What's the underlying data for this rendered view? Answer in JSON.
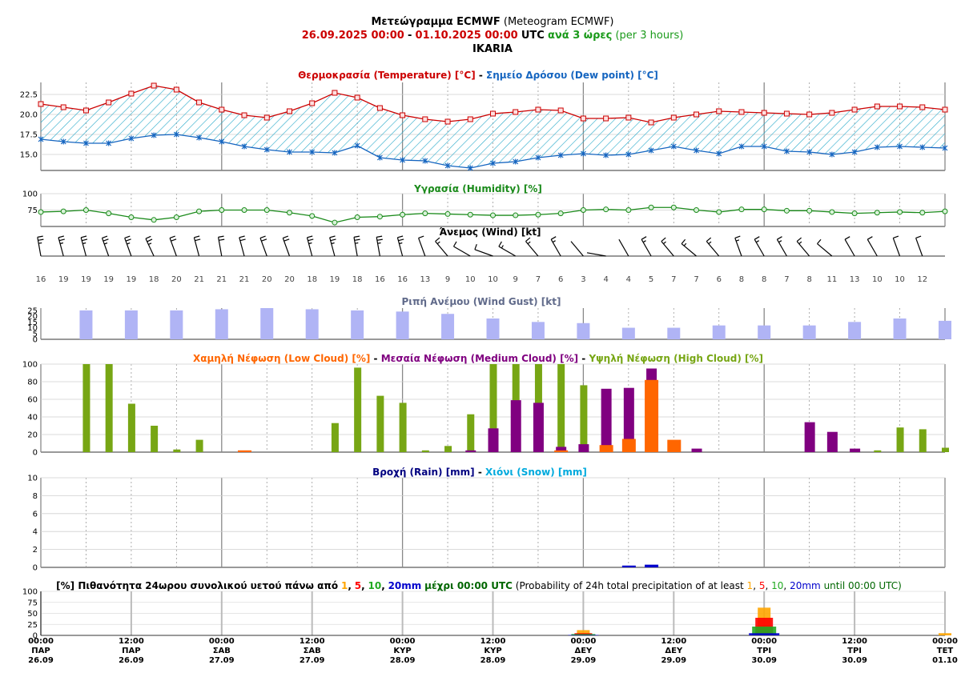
{
  "header": {
    "line1_bold": "Μετεώγραμμα ECMWF",
    "line1_normal": "(Meteogram ECMWF)",
    "line2_start": "26.09.2025 00:00",
    "line2_dash": "-",
    "line2_end": "01.10.2025 00:00",
    "line2_utc": "UTC",
    "line2_step": "ανά 3 ώρες",
    "line2_step_en": "(per 3 hours)",
    "location": "IKARIA"
  },
  "colors": {
    "temperature": "#cc0000",
    "dewpoint": "#1565c0",
    "humidity": "#1a8a1a",
    "gust": "#b0b4f5",
    "low_cloud": "#ff6600",
    "medium_cloud": "#800080",
    "high_cloud": "#77a614",
    "rain": "#0000cc",
    "snow": "#00aadd",
    "prob1": "#ffa500",
    "prob5": "#ff0000",
    "prob10": "#22aa22",
    "prob20": "#0000cc"
  },
  "chart_data": [
    {
      "type": "line",
      "name": "temperature_dewpoint",
      "title_part1": "Θερμοκρασία (Temperature) [°C]",
      "title_sep": "-",
      "title_part2": "Σημείο Δρόσου (Dew point) [°C]",
      "ylim": [
        13,
        24
      ],
      "yticks": [
        "15.0",
        "17.5",
        "20.0",
        "22.5"
      ],
      "series": [
        {
          "name": "Θερμοκρασία (Temperature) [°C]",
          "values": [
            21.3,
            20.9,
            20.5,
            21.5,
            22.6,
            23.6,
            23.1,
            21.5,
            20.6,
            19.9,
            19.6,
            20.4,
            21.4,
            22.7,
            22.1,
            20.8,
            19.9,
            19.4,
            19.1,
            19.4,
            20.1,
            20.3,
            20.6,
            20.5,
            19.5,
            19.5,
            19.6,
            19.0,
            19.6,
            20.0,
            20.4,
            20.3,
            20.2,
            20.1,
            20.0,
            20.2,
            20.6,
            21.0,
            21.0,
            20.9,
            20.6
          ]
        },
        {
          "name": "Σημείο Δρόσου (Dew point) [°C]",
          "values": [
            16.9,
            16.6,
            16.4,
            16.4,
            17.0,
            17.4,
            17.5,
            17.1,
            16.6,
            16.0,
            15.6,
            15.3,
            15.3,
            15.2,
            16.1,
            14.6,
            14.3,
            14.2,
            13.6,
            13.3,
            13.9,
            14.1,
            14.6,
            14.9,
            15.1,
            14.9,
            15.0,
            15.5,
            16.0,
            15.5,
            15.1,
            16.0,
            16.0,
            15.4,
            15.3,
            15.0,
            15.3,
            15.9,
            16.0,
            15.9,
            15.8
          ]
        }
      ]
    },
    {
      "type": "line",
      "name": "humidity",
      "title": "Υγρασία (Humidity) [%]",
      "ylim": [
        50,
        100
      ],
      "yticks": [
        "75",
        "100"
      ],
      "values": [
        72,
        73,
        75,
        70,
        64,
        60,
        64,
        73,
        75,
        75,
        75,
        71,
        66,
        56,
        64,
        65,
        68,
        70,
        69,
        68,
        67,
        67,
        68,
        70,
        75,
        76,
        75,
        79,
        79,
        75,
        72,
        76,
        76,
        74,
        74,
        72,
        70,
        71,
        72,
        71,
        73
      ]
    },
    {
      "type": "table",
      "name": "wind",
      "title": "Άνεμος (Wind) [kt]",
      "speeds": [
        "16",
        "19",
        "19",
        "19",
        "19",
        "18",
        "20",
        "21",
        "21",
        "21",
        "20",
        "20",
        "18",
        "19",
        "18",
        "16",
        "16",
        "13",
        "9",
        "10",
        "10",
        "9",
        "7",
        "6",
        "3",
        "4",
        "4",
        "5",
        "7",
        "7",
        "6",
        "8",
        "8",
        "7",
        "8",
        "11",
        "13",
        "10",
        "10",
        "12"
      ],
      "directions_deg": [
        350,
        345,
        345,
        340,
        340,
        335,
        340,
        345,
        350,
        345,
        340,
        340,
        345,
        345,
        350,
        350,
        345,
        340,
        320,
        300,
        290,
        300,
        320,
        330,
        320,
        280,
        330,
        330,
        320,
        310,
        320,
        340,
        330,
        330,
        320,
        310,
        330,
        330,
        340,
        340
      ]
    },
    {
      "type": "bar",
      "name": "wind_gust",
      "title": "Ριπή Ανέμου (Wind Gust) [kt]",
      "ylim": [
        0,
        27
      ],
      "yticks": [
        "0",
        "5",
        "10",
        "15",
        "20",
        "25"
      ],
      "values": [
        25,
        25,
        25,
        26,
        27,
        26,
        25,
        24,
        22,
        18,
        15,
        14,
        10,
        10,
        12,
        12,
        12,
        15,
        18,
        16
      ]
    },
    {
      "type": "bar",
      "name": "clouds",
      "title_low": "Χαμηλή Νέφωση (Low Cloud) [%]",
      "title_medium": "Μεσαία Νέφωση (Medium Cloud) [%]",
      "title_high": "Υψηλή Νέφωση (High Cloud) [%]",
      "title_sep": "-",
      "ylim": [
        0,
        100
      ],
      "yticks": [
        "0",
        "20",
        "40",
        "60",
        "80",
        "100"
      ],
      "series": [
        {
          "name": "Χαμηλή Νέφωση (Low Cloud) [%]",
          "values": [
            0,
            0,
            0,
            0,
            0,
            0,
            0,
            0,
            0,
            2,
            0,
            0,
            0,
            0,
            0,
            0,
            0,
            0,
            0,
            0,
            0,
            0,
            0,
            2,
            0,
            8,
            15,
            82,
            14,
            0,
            0,
            0,
            0,
            0,
            0,
            0,
            0,
            0,
            0,
            0,
            0
          ]
        },
        {
          "name": "Μεσαία Νέφωση (Medium Cloud) [%]",
          "values": [
            0,
            0,
            0,
            0,
            0,
            0,
            0,
            0,
            0,
            0,
            0,
            0,
            0,
            0,
            0,
            0,
            0,
            0,
            0,
            2,
            27,
            59,
            56,
            6,
            9,
            72,
            73,
            95,
            0,
            4,
            0,
            0,
            0,
            0,
            34,
            23,
            4,
            0,
            0,
            0,
            0
          ]
        },
        {
          "name": "Υψηλή Νέφωση (High Cloud) [%]",
          "values": [
            0,
            0,
            100,
            100,
            55,
            30,
            3,
            14,
            0,
            0,
            0,
            0,
            0,
            33,
            96,
            64,
            56,
            2,
            7,
            43,
            100,
            100,
            100,
            100,
            76,
            28,
            0,
            0,
            0,
            0,
            0,
            0,
            0,
            0,
            0,
            0,
            0,
            2,
            28,
            26,
            5
          ]
        }
      ]
    },
    {
      "type": "bar",
      "name": "precipitation",
      "title_rain": "Βροχή (Rain) [mm]",
      "title_sep": "-",
      "title_snow": "Χιόνι (Snow) [mm]",
      "ylim": [
        0,
        10
      ],
      "yticks": [
        "0",
        "2",
        "4",
        "6",
        "8",
        "10"
      ],
      "rain_values": [
        0,
        0,
        0,
        0,
        0,
        0,
        0,
        0,
        0,
        0,
        0,
        0,
        0,
        0,
        0,
        0,
        0,
        0,
        0,
        0,
        0,
        0,
        0,
        0,
        0,
        0,
        0.2,
        0.3,
        0,
        0,
        0,
        0,
        0,
        0,
        0,
        0,
        0,
        0,
        0,
        0,
        0
      ]
    },
    {
      "type": "bar",
      "name": "probability",
      "title_a": "[%] Πιθανότητα 24ωρου συνολικού υετού πάνω από",
      "title_b": "μέχρι 00:00 UTC",
      "title_c": "(Probability of 24h total precipitation of at least",
      "title_d": "until 00:00 UTC)",
      "thresholds": [
        "1",
        "5",
        "10",
        "20mm"
      ],
      "comma": ",",
      "yticks": [
        "0",
        "25",
        "50",
        "75",
        "100"
      ],
      "ylim": [
        0,
        100
      ],
      "days": [
        {
          "label": "ΔΕΥ 29.09",
          "p1": 12,
          "p5": 5,
          "p10": 3,
          "p20": 1
        },
        {
          "label": "ΤΡΙ 30.09",
          "p1": 63,
          "p5": 40,
          "p10": 20,
          "p20": 5
        },
        {
          "label": "ΤΕΤ 01.10",
          "p1": 5,
          "p5": 0,
          "p10": 0,
          "p20": 0
        }
      ]
    }
  ],
  "xaxis": [
    {
      "time": "00:00",
      "day": "ΠΑΡ",
      "date": "26.09"
    },
    {
      "time": "12:00",
      "day": "ΠΑΡ",
      "date": "26.09"
    },
    {
      "time": "00:00",
      "day": "ΣΑΒ",
      "date": "27.09"
    },
    {
      "time": "12:00",
      "day": "ΣΑΒ",
      "date": "27.09"
    },
    {
      "time": "00:00",
      "day": "ΚΥΡ",
      "date": "28.09"
    },
    {
      "time": "12:00",
      "day": "ΚΥΡ",
      "date": "28.09"
    },
    {
      "time": "00:00",
      "day": "ΔΕΥ",
      "date": "29.09"
    },
    {
      "time": "12:00",
      "day": "ΔΕΥ",
      "date": "29.09"
    },
    {
      "time": "00:00",
      "day": "ΤΡΙ",
      "date": "30.09"
    },
    {
      "time": "12:00",
      "day": "ΤΡΙ",
      "date": "30.09"
    },
    {
      "time": "00:00",
      "day": "ΤΕΤ",
      "date": "01.10"
    }
  ]
}
